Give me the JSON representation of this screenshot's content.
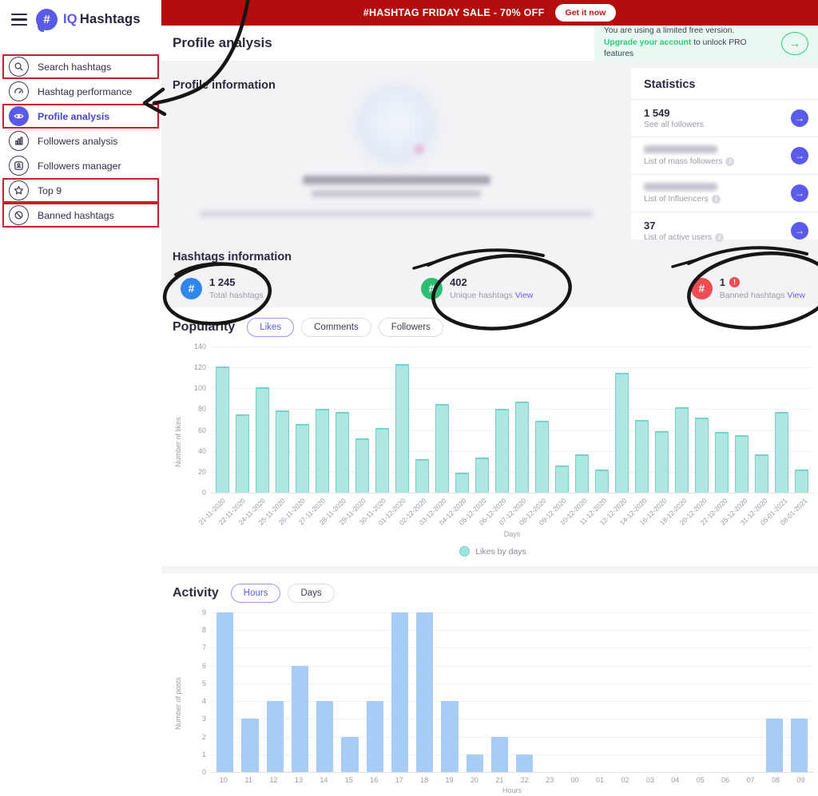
{
  "sidebar": {
    "logo": {
      "badge": "#",
      "iq": "IQ",
      "name": "Hashtags"
    },
    "items": [
      {
        "label": "Search hashtags",
        "icon": "search-icon",
        "boxed": true,
        "active": false
      },
      {
        "label": "Hashtag performance",
        "icon": "gauge-icon",
        "boxed": false,
        "active": false
      },
      {
        "label": "Profile analysis",
        "icon": "eye-icon",
        "boxed": true,
        "active": true
      },
      {
        "label": "Followers analysis",
        "icon": "chart-icon",
        "boxed": false,
        "active": false
      },
      {
        "label": "Followers manager",
        "icon": "person-icon",
        "boxed": false,
        "active": false
      },
      {
        "label": "Top 9",
        "icon": "star-icon",
        "boxed": true,
        "active": false
      },
      {
        "label": "Banned hashtags",
        "icon": "banned-icon",
        "boxed": true,
        "active": false
      }
    ]
  },
  "banner": {
    "text": "#HASHTAG FRIDAY SALE - 70% OFF",
    "button": "Get it now",
    "bg": "#b50d0d"
  },
  "header": {
    "title": "Profile analysis",
    "notice_line1": "You are using a limited free version.",
    "notice_link": "Upgrade your account",
    "notice_line2": " to unlock PRO features",
    "arrow_icon": "→"
  },
  "profile": {
    "section_title": "Profile information"
  },
  "statistics": {
    "title": "Statistics",
    "rows": [
      {
        "value": "1 549",
        "label": "See all followers",
        "blurred": false,
        "info": false
      },
      {
        "value": "",
        "label": "List of mass followers",
        "blurred": true,
        "info": true
      },
      {
        "value": "",
        "label": "List of Influencers",
        "blurred": true,
        "info": true
      },
      {
        "value": "37",
        "label": "List of active users",
        "blurred": false,
        "info": true
      }
    ]
  },
  "hashtags_info": {
    "title": "Hashtags information",
    "view_label": "View",
    "items": [
      {
        "value": "1 245",
        "label": "Total hashtags",
        "color": "#2f86eb",
        "view": false,
        "alert": false
      },
      {
        "value": "402",
        "label": "Unique hashtags",
        "color": "#2dbe73",
        "view": true,
        "alert": false
      },
      {
        "value": "1",
        "label": "Banned hashtags",
        "color": "#ee4b52",
        "view": true,
        "alert": true
      }
    ]
  },
  "popularity": {
    "title": "Popularity",
    "tabs": [
      "Likes",
      "Comments",
      "Followers"
    ],
    "active_tab": 0
  },
  "activity": {
    "title": "Activity",
    "tabs": [
      "Hours",
      "Days"
    ],
    "active_tab": 0
  },
  "chart_data": [
    {
      "type": "bar",
      "name": "popularity-likes",
      "categories": [
        "21-11-2020",
        "22-11-2020",
        "24-11-2020",
        "25-11-2020",
        "26-11-2020",
        "27-11-2020",
        "28-11-2020",
        "29-11-2020",
        "30-11-2020",
        "01-12-2020",
        "02-12-2020",
        "03-12-2020",
        "04-12-2020",
        "05-12-2020",
        "06-12-2020",
        "07-12-2020",
        "08-12-2020",
        "09-12-2020",
        "10-12-2020",
        "11-12-2020",
        "12-12-2020",
        "14-12-2020",
        "16-12-2020",
        "18-12-2020",
        "20-12-2020",
        "22-12-2020",
        "25-12-2020",
        "31-12-2020",
        "05-01-2021",
        "08-01-2021"
      ],
      "values": [
        121,
        75,
        101,
        79,
        66,
        80,
        77,
        52,
        62,
        123,
        32,
        85,
        19,
        34,
        80,
        87,
        69,
        26,
        37,
        22,
        115,
        70,
        59,
        82,
        72,
        58,
        55,
        37,
        77,
        22
      ],
      "xlabel": "Days",
      "ylabel": "Number of likes",
      "ylim": [
        0,
        140
      ],
      "yticks": [
        0,
        20,
        40,
        60,
        80,
        100,
        120,
        140
      ],
      "bar_color": "#aee7e2",
      "bar_border": "#74d3cb",
      "legend": "Likes by days",
      "grid": true,
      "legend_position": "bottom"
    },
    {
      "type": "bar",
      "name": "activity-hours",
      "categories": [
        "10",
        "11",
        "12",
        "13",
        "14",
        "15",
        "16",
        "17",
        "18",
        "19",
        "20",
        "21",
        "22",
        "23",
        "00",
        "01",
        "02",
        "03",
        "04",
        "05",
        "06",
        "07",
        "08",
        "09"
      ],
      "values": [
        9,
        3,
        4,
        6,
        4,
        2,
        4,
        9,
        9,
        4,
        1,
        2,
        1,
        0,
        0,
        0,
        0,
        0,
        0,
        0,
        0,
        0,
        3,
        3
      ],
      "xlabel": "Hours",
      "ylabel": "Number of posts",
      "ylim": [
        0,
        9
      ],
      "yticks": [
        0,
        1,
        2,
        3,
        4,
        5,
        6,
        7,
        8,
        9
      ],
      "bar_color": "#a7ccf8",
      "bar_border": "#a7ccf8",
      "legend": "",
      "grid": true,
      "legend_position": "none"
    }
  ]
}
